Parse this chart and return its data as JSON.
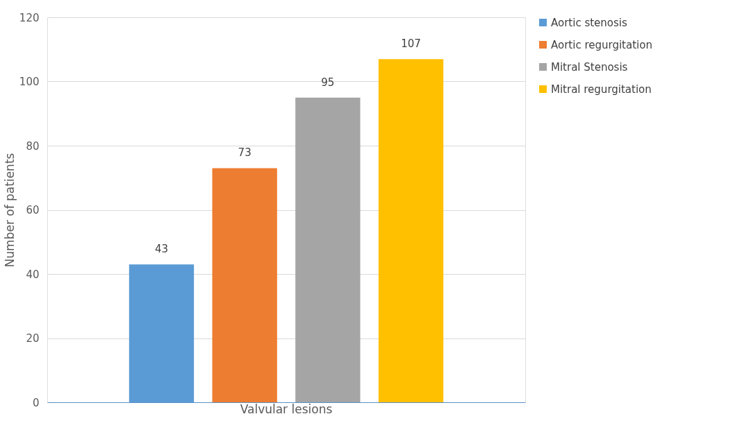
{
  "chart_data": {
    "type": "bar",
    "categories": [
      "Valvular lesions"
    ],
    "ylabel": "Number of patients",
    "series": [
      {
        "name": "Aortic stenosis",
        "color": "#5b9bd5",
        "values": [
          43
        ]
      },
      {
        "name": "Aortic regurgitation",
        "color": "#ed7d31",
        "values": [
          73
        ]
      },
      {
        "name": "Mitral Stenosis",
        "color": "#a5a5a5",
        "values": [
          95
        ]
      },
      {
        "name": "Mitral regurgitation",
        "color": "#ffc000",
        "values": [
          107
        ]
      }
    ],
    "ylim": [
      0,
      120
    ],
    "yticks": [
      0,
      20,
      40,
      60,
      80,
      100,
      120
    ],
    "grid": "y",
    "legend": "right",
    "data_labels": true
  }
}
